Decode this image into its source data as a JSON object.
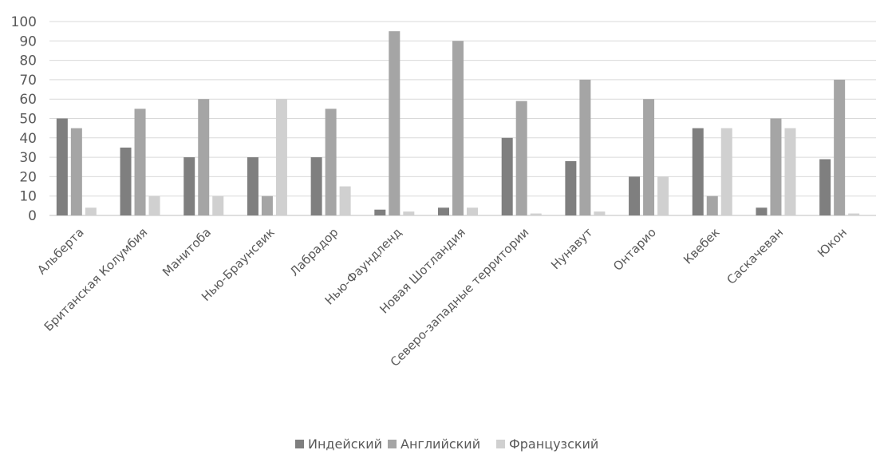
{
  "chart_data": {
    "type": "bar",
    "title": "",
    "xlabel": "",
    "ylabel": "",
    "ylim": [
      0,
      100
    ],
    "yticks": [
      0,
      10,
      20,
      30,
      40,
      50,
      60,
      70,
      80,
      90,
      100
    ],
    "grid": true,
    "legend_position": "bottom",
    "categories": [
      "Альберта",
      "Британская Колумбия",
      "Манитоба",
      "Нью-Браунсвик",
      "Лабрадор",
      "Нью-Фаундленд",
      "Новая Шотландия",
      "Северо-западные территории",
      "Нунавут",
      "Онтарио",
      "Квебек",
      "Саскачеван",
      "Юкон"
    ],
    "series": [
      {
        "name": "Индейский",
        "color": "#7f7f7f",
        "values": [
          50,
          35,
          30,
          30,
          30,
          3,
          4,
          40,
          28,
          20,
          45,
          4,
          29
        ]
      },
      {
        "name": "Английский",
        "color": "#a5a5a5",
        "values": [
          45,
          55,
          60,
          10,
          55,
          95,
          90,
          59,
          70,
          60,
          10,
          50,
          70
        ]
      },
      {
        "name": "Французский",
        "color": "#d0d0d0",
        "values": [
          4,
          10,
          10,
          60,
          15,
          2,
          4,
          1,
          2,
          20,
          45,
          45,
          1
        ]
      }
    ]
  }
}
